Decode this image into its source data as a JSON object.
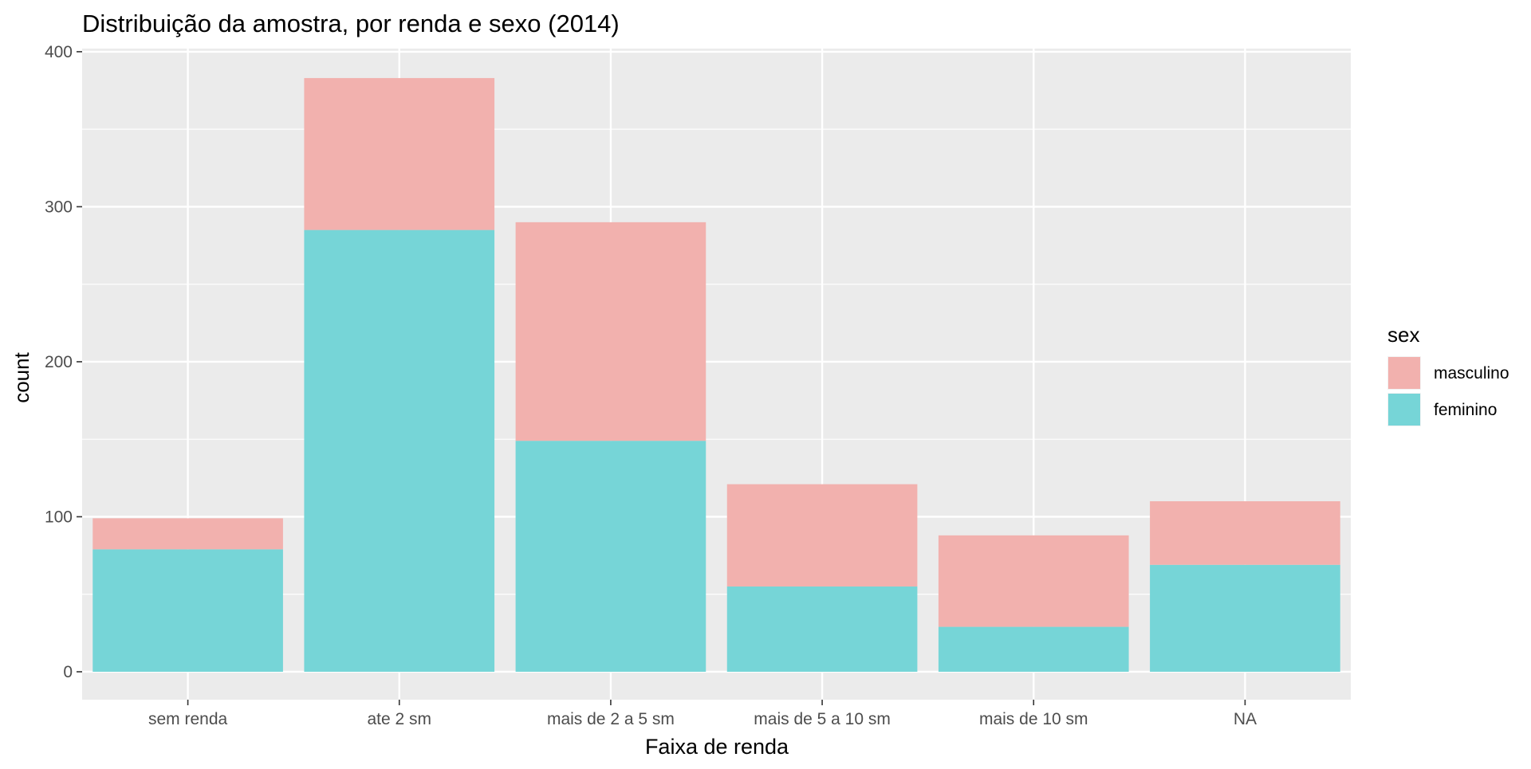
{
  "chart_data": {
    "type": "bar",
    "stacked": true,
    "title": "Distribuição da amostra, por renda e sexo (2014)",
    "xlabel": "Faixa de renda",
    "ylabel": "count",
    "categories": [
      "sem renda",
      "ate 2 sm",
      "mais de 2 a 5 sm",
      "mais de 5 a 10 sm",
      "mais de 10 sm",
      "NA"
    ],
    "series": [
      {
        "name": "masculino",
        "color": "#F2B1AE",
        "values": [
          20,
          98,
          141,
          66,
          59,
          41
        ]
      },
      {
        "name": "feminino",
        "color": "#76D5D7",
        "values": [
          79,
          285,
          149,
          55,
          29,
          69
        ]
      }
    ],
    "ylim": [
      -18,
      402
    ],
    "yticks": [
      0,
      100,
      200,
      300,
      400
    ],
    "ytick_labels": [
      "0",
      "100",
      "200",
      "300",
      "400"
    ],
    "grid": true,
    "legend": {
      "title": "sex",
      "placement": "right",
      "order": [
        "masculino",
        "feminino"
      ]
    }
  }
}
